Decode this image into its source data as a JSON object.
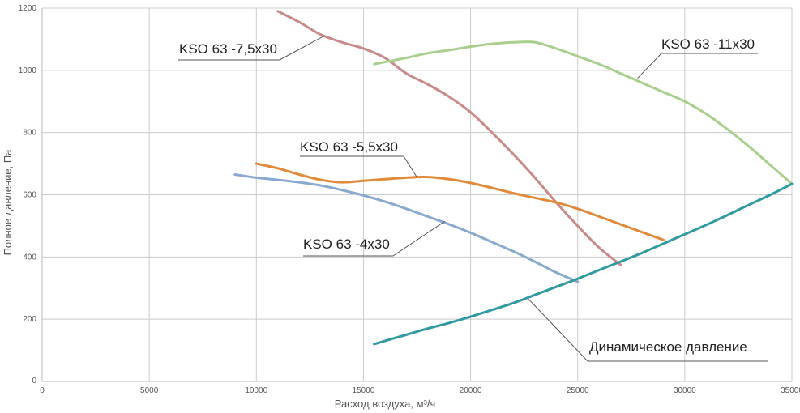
{
  "chart_data": {
    "type": "line",
    "xlabel": "Расход воздуха, м³/ч",
    "ylabel": "Полное давление, Па",
    "xlim": [
      0,
      35000
    ],
    "ylim": [
      0,
      1200
    ],
    "xticks": [
      "0",
      "5000",
      "10000",
      "15000",
      "20000",
      "25000",
      "30000",
      "35000"
    ],
    "yticks": [
      "0",
      "200",
      "400",
      "600",
      "800",
      "1000",
      "1200"
    ],
    "grid": true,
    "series": [
      {
        "name": "KSO 63 -7,5x30",
        "color": "#c98a8a",
        "x": [
          11000,
          12000,
          13000,
          14000,
          15000,
          16000,
          17000,
          18000,
          19000,
          20000,
          21000,
          22000,
          23000,
          24000,
          25000,
          26000,
          27000
        ],
        "y": [
          1190,
          1155,
          1115,
          1090,
          1070,
          1040,
          990,
          955,
          915,
          865,
          800,
          730,
          655,
          575,
          500,
          430,
          375
        ]
      },
      {
        "name": "KSO 63 -11x30",
        "color": "#a9cf8d",
        "x": [
          15500,
          17000,
          18000,
          19000,
          20000,
          21000,
          22000,
          23000,
          24000,
          25000,
          26000,
          27000,
          28000,
          29000,
          30000,
          31000,
          32000,
          33000,
          34000,
          35000
        ],
        "y": [
          1020,
          1040,
          1055,
          1065,
          1076,
          1085,
          1090,
          1090,
          1070,
          1045,
          1020,
          990,
          960,
          930,
          900,
          860,
          810,
          755,
          695,
          635
        ]
      },
      {
        "name": "KSO 63 -5,5x30",
        "color": "#e08a3a",
        "x": [
          10000,
          11000,
          12000,
          13000,
          14000,
          15000,
          16000,
          17000,
          18000,
          19000,
          20000,
          21000,
          22000,
          23000,
          24000,
          25000,
          26000,
          27000,
          28000,
          29000
        ],
        "y": [
          700,
          685,
          665,
          648,
          640,
          645,
          650,
          655,
          657,
          650,
          638,
          622,
          605,
          590,
          575,
          555,
          530,
          505,
          480,
          455
        ]
      },
      {
        "name": "KSO 63 -4x30",
        "color": "#8aa9d0",
        "x": [
          9000,
          10000,
          11000,
          12000,
          13000,
          14000,
          15000,
          16000,
          17000,
          18000,
          19000,
          20000,
          21000,
          22000,
          23000,
          24000,
          25000
        ],
        "y": [
          665,
          655,
          648,
          640,
          630,
          615,
          598,
          578,
          555,
          530,
          505,
          478,
          448,
          418,
          385,
          350,
          320
        ]
      },
      {
        "name": "Динамическое давление",
        "color": "#2f9aa0",
        "x": [
          15500,
          17000,
          18000,
          19000,
          20000,
          21000,
          22000,
          23000,
          24000,
          25000,
          26000,
          27000,
          28000,
          29000,
          30000,
          31000,
          32000,
          33000,
          34000,
          35000
        ],
        "y": [
          120,
          150,
          170,
          188,
          208,
          230,
          252,
          278,
          304,
          330,
          358,
          385,
          413,
          443,
          473,
          503,
          535,
          568,
          600,
          635
        ]
      }
    ]
  }
}
